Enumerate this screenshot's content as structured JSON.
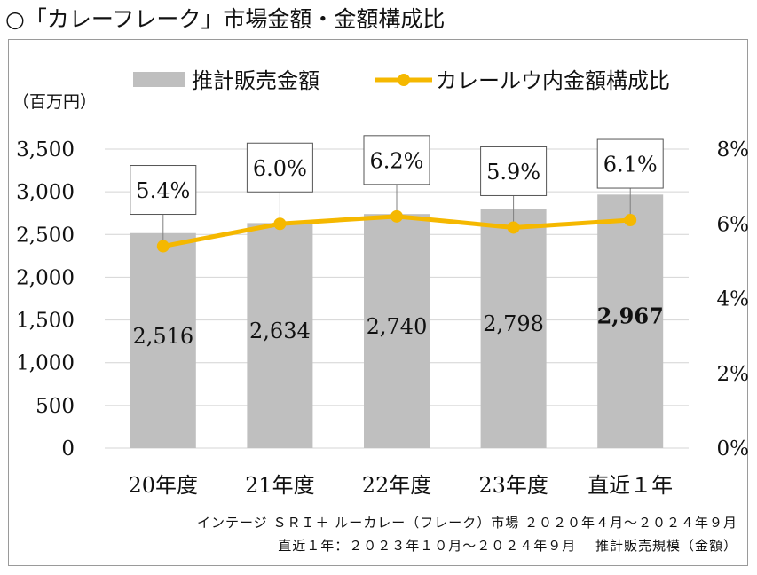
{
  "page": {
    "title": "○「カレーフレーク」市場金額・金額構成比",
    "source_line1": "インテージ ＳＲＩ＋ ルーカレー（フレーク）市場 ２０２０年４月～２０２４年９月",
    "source_line2": "直近１年：２０２３年１０月～２０２４年９月　 推計販売規模（金額）"
  },
  "chart_data": {
    "type": "bar+line",
    "categories": [
      "20年度",
      "21年度",
      "22年度",
      "23年度",
      "直近１年"
    ],
    "series": [
      {
        "name": "推計販売金額",
        "kind": "bar",
        "axis": "left",
        "values": [
          2516,
          2634,
          2740,
          2798,
          2967
        ],
        "labels": [
          "2,516",
          "2,634",
          "2,740",
          "2,798",
          "2,967"
        ],
        "color": "#bfbfbf"
      },
      {
        "name": "カレールウ内金額構成比",
        "kind": "line",
        "axis": "right",
        "values": [
          5.4,
          6.0,
          6.2,
          5.9,
          6.1
        ],
        "labels": [
          "5.4%",
          "6.0%",
          "6.2%",
          "5.9%",
          "6.1%"
        ],
        "color": "#f5b800"
      }
    ],
    "y_left": {
      "label": "（百万円）",
      "min": 0,
      "max": 3500,
      "step": 500,
      "tick_labels": [
        "0",
        "500",
        "1,000",
        "1,500",
        "2,000",
        "2,500",
        "3,000",
        "3,500"
      ]
    },
    "y_right": {
      "min": 0,
      "max": 8,
      "step": 2,
      "tick_labels": [
        "0%",
        "2%",
        "4%",
        "6%",
        "8%"
      ]
    },
    "bold_bar_label_index": 4,
    "grid": true,
    "legend_position": "top"
  }
}
